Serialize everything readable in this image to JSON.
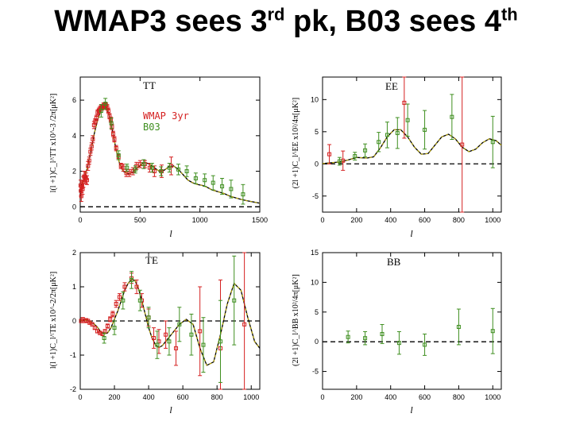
{
  "title": {
    "main": "WMAP3 sees 3",
    "sup1": "rd",
    "mid": " pk, B03 sees 4",
    "sup2": "th"
  },
  "colors": {
    "wmap": "#d42020",
    "b03": "#3f8f20",
    "theory": "#000000"
  },
  "legend": {
    "wmap": "WMAP 3yr",
    "b03": "B03"
  },
  "chart_data": [
    {
      "id": "TT",
      "type": "scatter",
      "name": "TT",
      "xlabel": "l",
      "ylabel": "l(l +1)C_l^TT x10^-3 /2π[μK²]",
      "xlim": [
        0,
        1500
      ],
      "ylim": [
        -0.3,
        7.3
      ],
      "xticks": [
        0,
        500,
        1000,
        1500
      ],
      "yticks": [
        0,
        2,
        4,
        6
      ],
      "theory": {
        "x": [
          0,
          30,
          60,
          90,
          120,
          150,
          180,
          200,
          220,
          240,
          260,
          280,
          300,
          330,
          360,
          400,
          440,
          480,
          520,
          540,
          580,
          620,
          660,
          700,
          740,
          780,
          820,
          860,
          900,
          940,
          980,
          1020,
          1060,
          1100,
          1150,
          1200,
          1250,
          1300,
          1350,
          1400,
          1450,
          1500
        ],
        "y": [
          1.1,
          1.5,
          2.2,
          3.2,
          4.2,
          5.0,
          5.55,
          5.7,
          5.6,
          5.2,
          4.6,
          3.9,
          3.2,
          2.4,
          2.0,
          1.85,
          1.95,
          2.2,
          2.45,
          2.5,
          2.4,
          2.2,
          2.0,
          2.05,
          2.25,
          2.3,
          2.1,
          1.8,
          1.5,
          1.35,
          1.25,
          1.2,
          1.1,
          0.95,
          0.85,
          0.75,
          0.6,
          0.5,
          0.4,
          0.33,
          0.27,
          0.2
        ]
      },
      "series": [
        {
          "name": "WMAP 3yr",
          "x": [
            3,
            6,
            9,
            12,
            16,
            20,
            26,
            32,
            40,
            48,
            56,
            65,
            75,
            85,
            95,
            105,
            115,
            125,
            135,
            145,
            155,
            165,
            175,
            185,
            195,
            205,
            215,
            225,
            235,
            245,
            255,
            265,
            275,
            285,
            300,
            320,
            340,
            360,
            385,
            410,
            440,
            470,
            500,
            540,
            580,
            620,
            680,
            760
          ],
          "y": [
            1.2,
            0.9,
            0.6,
            1.1,
            1.2,
            1.0,
            1.4,
            1.7,
            1.7,
            1.6,
            1.5,
            2.3,
            2.6,
            3.1,
            3.4,
            3.8,
            4.6,
            4.8,
            5.0,
            5.3,
            5.4,
            5.5,
            5.6,
            5.6,
            5.7,
            5.65,
            5.7,
            5.6,
            5.4,
            5.1,
            4.9,
            4.5,
            4.1,
            3.8,
            3.3,
            2.8,
            2.3,
            2.2,
            1.9,
            1.9,
            2.0,
            2.3,
            2.4,
            2.4,
            2.2,
            2.0,
            2.0,
            2.3
          ],
          "err": [
            0.3,
            0.3,
            0.3,
            0.3,
            0.3,
            0.3,
            0.3,
            0.3,
            0.3,
            0.3,
            0.25,
            0.25,
            0.2,
            0.2,
            0.2,
            0.2,
            0.2,
            0.15,
            0.15,
            0.15,
            0.15,
            0.15,
            0.15,
            0.15,
            0.15,
            0.15,
            0.15,
            0.15,
            0.15,
            0.15,
            0.15,
            0.15,
            0.15,
            0.15,
            0.15,
            0.15,
            0.15,
            0.2,
            0.2,
            0.2,
            0.2,
            0.2,
            0.2,
            0.2,
            0.25,
            0.3,
            0.35,
            0.5
          ]
        },
        {
          "name": "B03",
          "x": [
            175,
            210,
            260,
            320,
            390,
            460,
            530,
            600,
            675,
            745,
            820,
            890,
            965,
            1040,
            1110,
            1185,
            1260,
            1360
          ],
          "y": [
            5.4,
            5.8,
            4.7,
            2.9,
            2.2,
            2.1,
            2.4,
            2.2,
            2.0,
            2.2,
            2.1,
            2.0,
            1.6,
            1.5,
            1.35,
            1.15,
            1.0,
            0.7
          ],
          "err": [
            0.35,
            0.3,
            0.3,
            0.25,
            0.2,
            0.2,
            0.25,
            0.25,
            0.25,
            0.25,
            0.3,
            0.3,
            0.3,
            0.35,
            0.4,
            0.45,
            0.5,
            0.55
          ]
        }
      ]
    },
    {
      "id": "EE",
      "type": "scatter",
      "name": "EE",
      "xlabel": "l",
      "ylabel": "(2l +1)C_l^EE x10²/4π[μK²]",
      "xlim": [
        0,
        1050
      ],
      "ylim": [
        -7.5,
        13.5
      ],
      "xticks": [
        0,
        200,
        400,
        600,
        800,
        1000
      ],
      "yticks": [
        -5,
        0,
        5,
        10
      ],
      "theory": {
        "x": [
          0,
          100,
          150,
          200,
          260,
          300,
          340,
          380,
          420,
          460,
          500,
          540,
          580,
          620,
          660,
          700,
          740,
          780,
          820,
          860,
          900,
          940,
          980,
          1020,
          1050
        ],
        "y": [
          0.05,
          0.3,
          0.6,
          1.0,
          0.9,
          1.1,
          2.5,
          4.2,
          5.3,
          5.3,
          4.2,
          2.6,
          1.5,
          1.6,
          2.9,
          4.2,
          4.6,
          3.9,
          2.6,
          1.9,
          2.3,
          3.3,
          3.9,
          3.6,
          2.9
        ]
      },
      "series": [
        {
          "name": "WMAP 3yr",
          "x": [
            40,
            120,
            480,
            820
          ],
          "y": [
            1.5,
            0.5,
            9.5,
            3.0
          ],
          "err": [
            1.5,
            1.5,
            5.5,
            16.0
          ]
        },
        {
          "name": "B03",
          "x": [
            100,
            190,
            250,
            330,
            380,
            440,
            500,
            600,
            760,
            1000
          ],
          "y": [
            0.4,
            1.2,
            2.1,
            3.4,
            4.5,
            4.8,
            6.8,
            5.3,
            7.3,
            3.4
          ],
          "err": [
            0.6,
            0.6,
            1.0,
            1.5,
            2.0,
            2.4,
            2.5,
            3.0,
            3.5,
            4.0
          ]
        }
      ]
    },
    {
      "id": "TE",
      "type": "scatter",
      "name": "TE",
      "xlabel": "l",
      "ylabel": "l(l +1)C_l^TE x10^-2/2π[μK²]",
      "xlim": [
        0,
        1050
      ],
      "ylim": [
        -2.0,
        2.0
      ],
      "xticks": [
        0,
        200,
        400,
        600,
        800,
        1000
      ],
      "yticks": [
        -2,
        -1,
        0,
        1,
        2
      ],
      "theory": {
        "x": [
          0,
          20,
          40,
          60,
          80,
          100,
          120,
          140,
          160,
          180,
          200,
          220,
          240,
          260,
          280,
          300,
          320,
          340,
          360,
          380,
          400,
          420,
          440,
          460,
          480,
          500,
          540,
          580,
          620,
          660,
          700,
          740,
          780,
          820,
          860,
          900,
          940,
          980,
          1020,
          1050
        ],
        "y": [
          0,
          0.02,
          0.02,
          -0.02,
          -0.08,
          -0.18,
          -0.32,
          -0.38,
          -0.35,
          -0.2,
          0.05,
          0.3,
          0.6,
          0.9,
          1.1,
          1.22,
          1.18,
          0.95,
          0.6,
          0.2,
          -0.2,
          -0.5,
          -0.7,
          -0.78,
          -0.72,
          -0.6,
          -0.35,
          -0.1,
          0.05,
          -0.1,
          -0.8,
          -1.3,
          -1.2,
          -0.4,
          0.5,
          1.1,
          0.9,
          0.1,
          -0.6,
          -0.8
        ]
      },
      "series": [
        {
          "name": "WMAP 3yr",
          "x": [
            5,
            15,
            25,
            35,
            45,
            55,
            70,
            85,
            100,
            115,
            130,
            145,
            160,
            175,
            190,
            210,
            230,
            260,
            300,
            330,
            360,
            400,
            430,
            460,
            500,
            560,
            700,
            820,
            960
          ],
          "y": [
            0,
            0.05,
            0,
            0.02,
            0,
            -0.05,
            -0.1,
            -0.2,
            -0.3,
            -0.35,
            -0.38,
            -0.3,
            -0.15,
            0.05,
            0.2,
            0.5,
            0.7,
            1.0,
            1.25,
            1.0,
            0.6,
            0.1,
            -0.5,
            -0.6,
            -0.4,
            -0.8,
            -0.3,
            -0.8,
            -0.1
          ],
          "err": [
            0.05,
            0.05,
            0.05,
            0.05,
            0.05,
            0.05,
            0.05,
            0.05,
            0.05,
            0.05,
            0.05,
            0.05,
            0.06,
            0.07,
            0.08,
            0.1,
            0.1,
            0.12,
            0.15,
            0.2,
            0.2,
            0.25,
            0.3,
            0.35,
            0.4,
            0.5,
            1.3,
            2.0,
            2.5
          ]
        },
        {
          "name": "B03",
          "x": [
            140,
            200,
            250,
            300,
            350,
            400,
            450,
            520,
            580,
            650,
            720,
            820,
            900
          ],
          "y": [
            -0.5,
            -0.2,
            0.6,
            1.2,
            0.6,
            0.1,
            -0.7,
            -0.6,
            -0.1,
            -0.4,
            -0.7,
            -0.6,
            0.6
          ],
          "err": [
            0.15,
            0.2,
            0.25,
            0.25,
            0.3,
            0.3,
            0.4,
            0.4,
            0.5,
            0.6,
            0.8,
            1.2,
            1.3
          ]
        }
      ]
    },
    {
      "id": "BB",
      "type": "scatter",
      "name": "BB",
      "xlabel": "l",
      "ylabel": "(2l +1)C_l^BB x10²/4π[μK²]",
      "xlim": [
        0,
        1050
      ],
      "ylim": [
        -8,
        15
      ],
      "xticks": [
        0,
        200,
        400,
        600,
        800,
        1000
      ],
      "yticks": [
        -5,
        0,
        5,
        10,
        15
      ],
      "theory": {
        "x": [
          0,
          1050
        ],
        "y": [
          0,
          0
        ]
      },
      "series": [
        {
          "name": "B03",
          "x": [
            150,
            250,
            350,
            450,
            600,
            800,
            1000
          ],
          "y": [
            0.8,
            0.6,
            1.3,
            -0.2,
            -0.5,
            2.5,
            1.8
          ],
          "err": [
            1.0,
            1.1,
            1.6,
            1.9,
            1.8,
            3.0,
            3.8
          ]
        }
      ]
    }
  ]
}
